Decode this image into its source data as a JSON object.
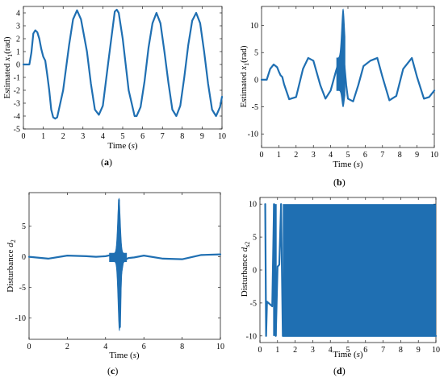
{
  "panels": {
    "a": {
      "caption_open": "(",
      "caption_letter": "a",
      "caption_close": ")",
      "ylabel_pre": "Estimated ",
      "ylabel_var": "x",
      "ylabel_sub": "1",
      "ylabel_post": "(rad)",
      "xlabel_pre": "Time (",
      "xlabel_var": "s",
      "xlabel_post": ")"
    },
    "b": {
      "caption_open": "(",
      "caption_letter": "b",
      "caption_close": ")",
      "ylabel_pre": "Estimated ",
      "ylabel_var": "x",
      "ylabel_sub": "1",
      "ylabel_post": "(rad)",
      "xlabel_pre": "Time (",
      "xlabel_var": "s",
      "xlabel_post": ")"
    },
    "c": {
      "caption_open": "(",
      "caption_letter": "c",
      "caption_close": ")",
      "ylabel_pre": "Disturbance ",
      "ylabel_var": "d",
      "ylabel_sub": "2",
      "ylabel_post": "",
      "xlabel_pre": "Time (",
      "xlabel_var": "s",
      "xlabel_post": ")"
    },
    "d": {
      "caption_open": "(",
      "caption_letter": "d",
      "caption_close": ")",
      "ylabel_pre": "Disturbance ",
      "ylabel_var": "d",
      "ylabel_sub": "s2",
      "ylabel_post": "",
      "xlabel_pre": "Time (",
      "xlabel_var": "s",
      "xlabel_post": ")"
    }
  },
  "chart_data": [
    {
      "id": "a",
      "type": "line",
      "color": "#1f6fb2",
      "xlim": [
        0,
        10
      ],
      "ylim": [
        -5,
        4.5
      ],
      "xticks": [
        0,
        1,
        2,
        3,
        4,
        5,
        6,
        7,
        8,
        9,
        10
      ],
      "yticks": [
        -5,
        -4,
        -3,
        -2,
        -1,
        0,
        1,
        2,
        3,
        4
      ],
      "series": [
        {
          "x": [
            0,
            0.3,
            0.4,
            0.5,
            0.6,
            0.7,
            0.8,
            0.9,
            1.0,
            1.1,
            1.2,
            1.3,
            1.4,
            1.5,
            1.6,
            1.7,
            2.0,
            2.3,
            2.5,
            2.7,
            2.9,
            3.2,
            3.4,
            3.6,
            3.8,
            4.0,
            4.3,
            4.6,
            4.7,
            4.8,
            5.0,
            5.3,
            5.6,
            5.7,
            5.9,
            6.1,
            6.3,
            6.5,
            6.7,
            6.9,
            7.1,
            7.3,
            7.5,
            7.7,
            7.9,
            8.1,
            8.3,
            8.5,
            8.7,
            8.9,
            9.1,
            9.3,
            9.5,
            9.7,
            9.9,
            10.0
          ],
          "y": [
            0,
            0,
            0.9,
            2.4,
            2.65,
            2.5,
            2.0,
            1.2,
            0.6,
            0.3,
            -0.8,
            -2.0,
            -3.5,
            -4.1,
            -4.2,
            -4.1,
            -2.0,
            1.5,
            3.5,
            4.2,
            3.5,
            1.0,
            -1.5,
            -3.5,
            -3.9,
            -3.2,
            0.5,
            4.1,
            4.25,
            4.0,
            2.0,
            -2.0,
            -4.0,
            -4.0,
            -3.3,
            -1.3,
            1.3,
            3.2,
            4.0,
            3.2,
            1.0,
            -1.4,
            -3.5,
            -4.0,
            -3.2,
            -1.0,
            1.5,
            3.4,
            4.0,
            3.2,
            1.0,
            -1.5,
            -3.5,
            -4.0,
            -3.3,
            -2.5
          ]
        }
      ]
    },
    {
      "id": "b",
      "type": "line",
      "color": "#1f6fb2",
      "xlim": [
        0,
        10
      ],
      "ylim": [
        -12.5,
        13.5
      ],
      "xticks": [
        0,
        1,
        2,
        3,
        4,
        5,
        6,
        7,
        8,
        9,
        10
      ],
      "yticks": [
        -10,
        -5,
        0,
        5,
        10
      ],
      "series": [
        {
          "x": [
            0,
            0.3,
            0.5,
            0.7,
            0.9,
            1.0,
            1.1,
            1.2,
            1.3,
            1.6,
            2.0,
            2.4,
            2.7,
            3.0,
            3.4,
            3.7,
            4.0,
            4.3,
            4.5,
            4.6,
            4.7,
            4.8,
            4.9,
            5.0,
            5.3,
            5.6,
            5.9,
            6.3,
            6.7,
            7.0,
            7.4,
            7.8,
            8.2,
            8.7,
            9.0,
            9.4,
            9.7,
            10.0
          ],
          "y": [
            0,
            0,
            2.0,
            2.8,
            2.3,
            1.5,
            0.8,
            0.5,
            -0.8,
            -3.6,
            -3.2,
            2.0,
            4.0,
            3.5,
            -1.0,
            -3.5,
            -2.0,
            1.5,
            3.5,
            5.0,
            4.5,
            2.5,
            -1.0,
            -3.5,
            -4.0,
            -1.0,
            2.5,
            3.5,
            4.0,
            0.5,
            -3.8,
            -3.0,
            2.0,
            4.0,
            0.5,
            -3.5,
            -3.2,
            -2.0
          ]
        }
      ]
    },
    {
      "id": "c",
      "type": "line",
      "color": "#1f6fb2",
      "xlim": [
        0,
        10
      ],
      "ylim": [
        -13.5,
        10.5
      ],
      "xticks": [
        0,
        2,
        4,
        6,
        8,
        10
      ],
      "yticks": [
        -10,
        -5,
        0,
        5
      ],
      "series": [
        {
          "x": [
            0,
            1,
            2,
            3,
            3.5,
            4.0,
            4.3,
            4.5,
            4.6,
            4.65,
            4.7,
            4.75,
            4.8,
            4.9,
            5.0,
            5.2,
            5.5,
            6,
            7,
            8,
            9,
            10
          ],
          "y": [
            0,
            -0.3,
            0.2,
            0.1,
            0,
            0.1,
            0.3,
            0.5,
            1.0,
            3.0,
            9.3,
            -11.5,
            -3.0,
            -1.0,
            -0.5,
            -0.2,
            -0.1,
            0.2,
            -0.3,
            -0.4,
            0.3,
            0.4
          ]
        }
      ]
    },
    {
      "id": "d",
      "type": "line",
      "color": "#1f6fb2",
      "xlim": [
        0,
        10
      ],
      "ylim": [
        -11,
        11
      ],
      "xticks": [
        0,
        1,
        2,
        3,
        4,
        5,
        6,
        7,
        8,
        9,
        10
      ],
      "yticks": [
        -10,
        -5,
        0,
        5,
        10
      ],
      "series": [
        {
          "x": [
            0.3,
            0.35,
            0.4,
            0.7,
            0.8,
            0.9,
            1.0,
            1.1,
            1.2,
            1.3,
            10.0
          ],
          "y": [
            10,
            -10,
            -4.8,
            -5.5,
            10,
            -10,
            0.5,
            0.8,
            10,
            -10,
            -10
          ]
        }
      ]
    }
  ]
}
